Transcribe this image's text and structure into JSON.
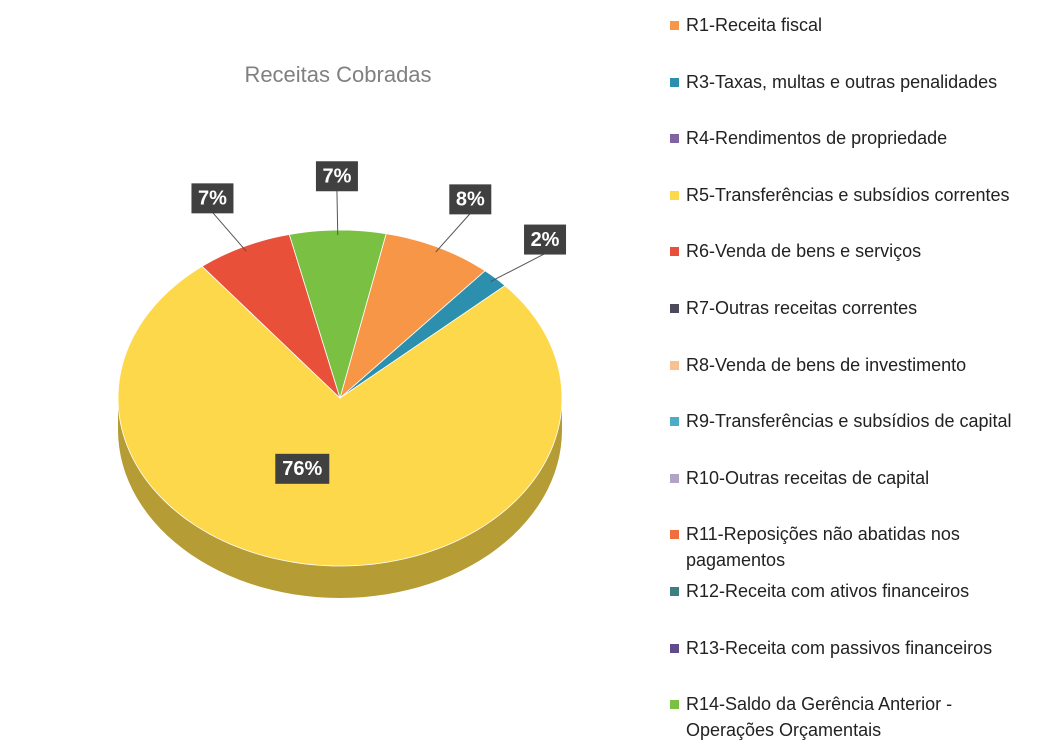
{
  "chart_data": {
    "type": "pie",
    "title": "Receitas Cobradas",
    "categories": [
      "R1-Receita fiscal",
      "R3-Taxas, multas e outras penalidades",
      "R4-Rendimentos de propriedade",
      "R5-Transferências e subsídios correntes",
      "R6-Venda de bens e serviços",
      "R7-Outras receitas correntes",
      "R8-Venda de bens de investimento",
      "R9-Transferências e subsídios de capital",
      "R10-Outras receitas de capital",
      "R11-Reposições não abatidas nos pagamentos",
      "R12-Receita com ativos financeiros",
      "R13-Receita com passivos financeiros",
      "R14-Saldo da Gerência Anterior - Operações Orçamentais"
    ],
    "values": [
      8,
      2,
      0,
      76,
      7,
      0,
      0,
      0,
      0,
      0,
      0,
      0,
      7
    ],
    "value_labels": [
      "8%",
      "2%",
      null,
      "76%",
      "7%",
      null,
      null,
      null,
      null,
      null,
      null,
      null,
      "7%"
    ],
    "colors": [
      "#f79646",
      "#2b8fad",
      "#8064a2",
      "#fdd84a",
      "#e8503a",
      "#4a4a5a",
      "#fac090",
      "#4bacc6",
      "#b3a2c7",
      "#f26d3d",
      "#3b7f80",
      "#5f4b8b",
      "#7ac143"
    ]
  }
}
